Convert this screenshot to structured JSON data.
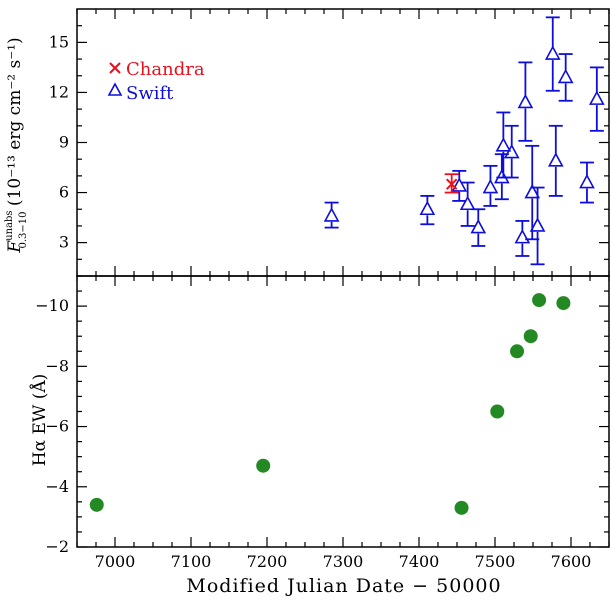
{
  "chart_data": [
    {
      "type": "scatter",
      "panel": "top",
      "ylabel_main": "F",
      "ylabel_sup": "unabs",
      "ylabel_sub": "0.3−10",
      "ylabel_rest": " (10⁻¹³ erg cm⁻² s⁻¹)",
      "xlim": [
        6950,
        7650
      ],
      "ylim": [
        1,
        17
      ],
      "y_ticks": [
        3,
        6,
        9,
        12,
        15
      ],
      "y_tick_labels": [
        "3",
        "6",
        "9",
        "12",
        "15"
      ],
      "legend_placement": "top-left",
      "series": [
        {
          "name": "Chandra",
          "color": "#e8111d",
          "marker": "x",
          "points": [
            {
              "x": 7443,
              "y": 6.5,
              "ylo": 6.0,
              "yhi": 7.1
            }
          ]
        },
        {
          "name": "Swift",
          "color": "#0d0ddc",
          "marker": "open-triangle",
          "points": [
            {
              "x": 7285,
              "y": 4.6,
              "ylo": 3.9,
              "yhi": 5.4
            },
            {
              "x": 7411,
              "y": 5.0,
              "ylo": 4.1,
              "yhi": 5.8
            },
            {
              "x": 7453,
              "y": 6.4,
              "ylo": 5.5,
              "yhi": 7.3
            },
            {
              "x": 7464,
              "y": 5.3,
              "ylo": 4.0,
              "yhi": 6.6
            },
            {
              "x": 7478,
              "y": 3.9,
              "ylo": 2.8,
              "yhi": 5.0
            },
            {
              "x": 7494,
              "y": 6.3,
              "ylo": 5.2,
              "yhi": 7.6
            },
            {
              "x": 7509,
              "y": 6.9,
              "ylo": 5.6,
              "yhi": 8.3
            },
            {
              "x": 7511,
              "y": 8.8,
              "ylo": 6.9,
              "yhi": 10.8
            },
            {
              "x": 7522,
              "y": 8.4,
              "ylo": 6.9,
              "yhi": 10.0
            },
            {
              "x": 7536,
              "y": 3.3,
              "ylo": 2.2,
              "yhi": 4.3
            },
            {
              "x": 7540,
              "y": 11.4,
              "ylo": 9.1,
              "yhi": 13.8
            },
            {
              "x": 7549,
              "y": 6.0,
              "ylo": 3.2,
              "yhi": 8.8
            },
            {
              "x": 7556,
              "y": 4.0,
              "ylo": 1.7,
              "yhi": 6.3
            },
            {
              "x": 7576,
              "y": 14.3,
              "ylo": 12.1,
              "yhi": 16.5
            },
            {
              "x": 7580,
              "y": 7.9,
              "ylo": 5.8,
              "yhi": 10.0
            },
            {
              "x": 7593,
              "y": 12.9,
              "ylo": 11.5,
              "yhi": 14.3
            },
            {
              "x": 7621,
              "y": 6.6,
              "ylo": 5.4,
              "yhi": 7.8
            },
            {
              "x": 7634,
              "y": 11.6,
              "ylo": 9.7,
              "yhi": 13.5
            }
          ]
        }
      ]
    },
    {
      "type": "scatter",
      "panel": "bottom",
      "xlabel": "Modified Julian Date − 50000",
      "ylabel": "Hα EW (Å)",
      "xlim": [
        6950,
        7650
      ],
      "ylim": [
        -2,
        -11
      ],
      "x_ticks": [
        7000,
        7100,
        7200,
        7300,
        7400,
        7500,
        7600
      ],
      "x_tick_labels": [
        "7000",
        "7100",
        "7200",
        "7300",
        "7400",
        "7500",
        "7600"
      ],
      "y_ticks": [
        -2,
        -4,
        -6,
        -8,
        -10
      ],
      "y_tick_labels": [
        "−2",
        "−4",
        "−6",
        "−8",
        "−10"
      ],
      "series": [
        {
          "color": "#238a23",
          "marker": "filled-circle",
          "points": [
            {
              "x": 6976,
              "y": -3.4
            },
            {
              "x": 7195,
              "y": -4.7
            },
            {
              "x": 7456,
              "y": -3.3
            },
            {
              "x": 7503,
              "y": -6.5
            },
            {
              "x": 7529,
              "y": -8.5
            },
            {
              "x": 7547,
              "y": -9.0
            },
            {
              "x": 7558,
              "y": -10.2
            },
            {
              "x": 7590,
              "y": -10.1
            }
          ]
        }
      ]
    }
  ]
}
